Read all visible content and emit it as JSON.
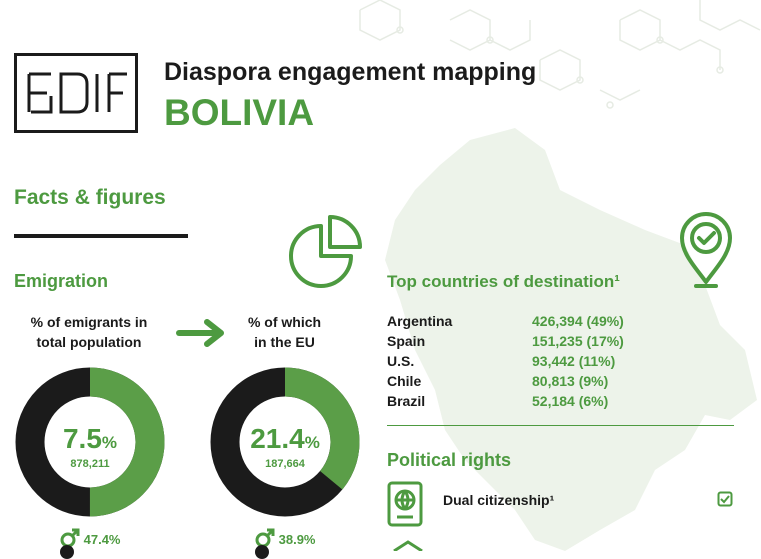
{
  "logo": {
    "text": "EUDiF"
  },
  "header": {
    "title": "Diaspora engagement mapping",
    "country": "BOLIVIA"
  },
  "section": {
    "title": "Facts & figures"
  },
  "emigration": {
    "title": "Emigration",
    "chart1": {
      "label_line1": "% of emigrants in",
      "label_line2": "total population",
      "value": "7.5",
      "unit": "%",
      "count": "878,211",
      "male": "47.4%",
      "fraction": 0.5
    },
    "chart2": {
      "label_line1": "% of which",
      "label_line2": "in the EU",
      "value": "21.4",
      "unit": "%",
      "count": "187,664",
      "male": "38.9%",
      "fraction": 0.36
    }
  },
  "destinations": {
    "title": "Top countries of destination¹",
    "rows": [
      {
        "country": "Argentina",
        "value": "426,394 (49%)"
      },
      {
        "country": "Spain",
        "value": "151,235 (17%)"
      },
      {
        "country": "U.S.",
        "value": "93,442 (11%)"
      },
      {
        "country": "Chile",
        "value": "80,813 (9%)"
      },
      {
        "country": "Brazil",
        "value": "52,184 (6%)"
      }
    ]
  },
  "political": {
    "title": "Political rights",
    "dual": "Dual citizenship¹"
  },
  "colors": {
    "accent": "#4d9a40",
    "dark": "#1b1b1b",
    "map": "#edf3ea"
  }
}
